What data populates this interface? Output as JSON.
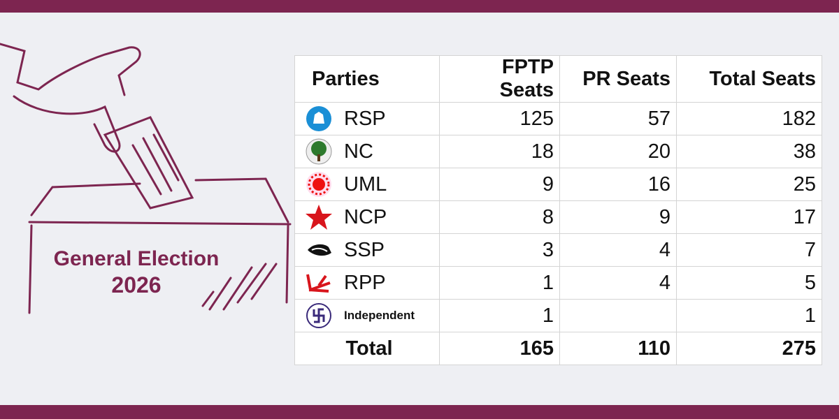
{
  "banner": {
    "title": "General Election",
    "year": "2026"
  },
  "table": {
    "headers": [
      "Parties",
      "FPTP Seats",
      "PR Seats",
      "Total Seats"
    ],
    "rows": [
      [
        "RSP",
        125,
        57,
        182
      ],
      [
        "NC",
        18,
        20,
        38
      ],
      [
        "UML",
        9,
        16,
        25
      ],
      [
        "NCP",
        8,
        9,
        17
      ],
      [
        "SSP",
        3,
        4,
        7
      ],
      [
        "RPP",
        1,
        4,
        5
      ],
      [
        "Independent",
        1,
        null,
        1
      ]
    ],
    "total": [
      "Total",
      165,
      110,
      275
    ]
  }
}
